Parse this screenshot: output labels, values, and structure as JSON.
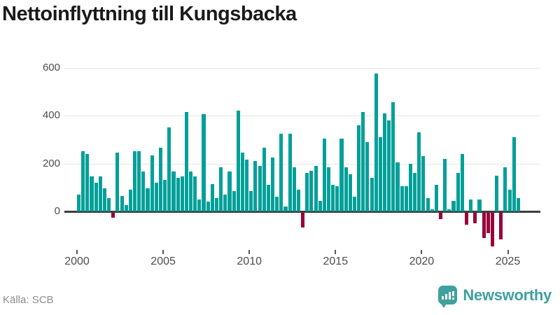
{
  "title": "Nettoinflyttning till Kungsbacka",
  "source": "Källa: SCB",
  "branding": {
    "name": "Newsworthy",
    "icon": "newsworthy-speech-bubble-chart-icon"
  },
  "colors": {
    "positive_bar": "#00a099",
    "negative_bar": "#990038",
    "gridline": "#e4e4e4",
    "zero_line": "#3d3d3d",
    "title_text": "#1a1a1a",
    "axis_text": "#4d4d4d",
    "source_text": "#8c8c8c",
    "brand": "#3fa0a0"
  },
  "chart_data": {
    "type": "bar",
    "title": "Nettoinflyttning till Kungsbacka",
    "xlabel": "",
    "ylabel": "",
    "grid": "horizontal",
    "legend": "none",
    "ylim": [
      -150,
      620
    ],
    "y_ticks": [
      600,
      400,
      200,
      0
    ],
    "x_tick_labels": [
      "2000",
      "2005",
      "2010",
      "2015",
      "2020",
      "2025"
    ],
    "frequency": "quarterly",
    "start_period": "2000 Q1",
    "end_period": "2025 Q3",
    "values": [
      70,
      250,
      240,
      145,
      120,
      145,
      95,
      55,
      -20,
      245,
      65,
      25,
      90,
      250,
      250,
      165,
      95,
      235,
      120,
      265,
      130,
      350,
      165,
      140,
      145,
      415,
      165,
      145,
      50,
      405,
      40,
      115,
      55,
      185,
      70,
      165,
      85,
      420,
      245,
      215,
      85,
      210,
      190,
      265,
      110,
      225,
      60,
      325,
      20,
      325,
      185,
      90,
      -60,
      160,
      170,
      190,
      45,
      305,
      185,
      110,
      105,
      305,
      185,
      155,
      60,
      360,
      415,
      290,
      140,
      575,
      310,
      410,
      380,
      455,
      205,
      105,
      105,
      200,
      160,
      330,
      230,
      55,
      10,
      110,
      -25,
      220,
      10,
      45,
      160,
      240,
      -50,
      50,
      -45,
      50,
      -105,
      -85,
      -140,
      150,
      -110,
      185,
      90,
      310,
      55
    ]
  }
}
